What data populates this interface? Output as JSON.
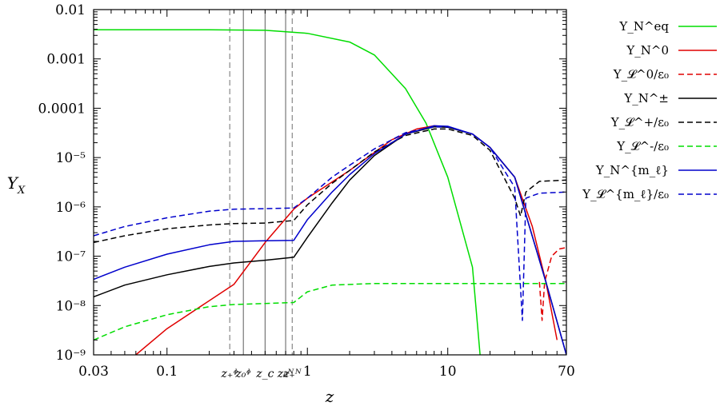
{
  "chart_data": {
    "type": "line",
    "xlabel": "z",
    "ylabel": "Y_X",
    "x_scale": "log",
    "y_scale": "log",
    "xlim": [
      0.03,
      70
    ],
    "ylim": [
      1e-09,
      0.01
    ],
    "grid": false,
    "legend_position": "outside right",
    "x_ticks": [
      {
        "value": 0.03,
        "label": "0.03"
      },
      {
        "value": 0.1,
        "label": "0.1"
      },
      {
        "value": 1,
        "label": "1"
      },
      {
        "value": 10,
        "label": "10"
      },
      {
        "value": 70,
        "label": "70"
      }
    ],
    "x_minor_ticks": [
      0.04,
      0.05,
      0.06,
      0.07,
      0.08,
      0.09,
      0.2,
      0.3,
      0.4,
      0.5,
      0.6,
      0.7,
      0.8,
      0.9,
      2,
      3,
      4,
      5,
      6,
      7,
      8,
      9,
      20,
      30,
      40,
      50,
      60
    ],
    "y_ticks": [
      {
        "value": 1e-09,
        "label": "10⁻⁹"
      },
      {
        "value": 1e-08,
        "label": "10⁻⁸"
      },
      {
        "value": 1e-07,
        "label": "10⁻⁷"
      },
      {
        "value": 1e-06,
        "label": "10⁻⁶"
      },
      {
        "value": 1e-05,
        "label": "10⁻⁵"
      },
      {
        "value": 0.0001,
        "label": "0.0001"
      },
      {
        "value": 0.001,
        "label": "0.001"
      },
      {
        "value": 0.01,
        "label": "0.01"
      }
    ],
    "vertical_markers": [
      {
        "name": "z₊ᶲ",
        "value": 0.28,
        "style": "dashed"
      },
      {
        "name": "z₀ᶲ",
        "value": 0.35,
        "style": "solid"
      },
      {
        "name": "z_c",
        "value": 0.5,
        "style": "solid"
      },
      {
        "name": "z₀ᴺ",
        "value": 0.7,
        "style": "solid"
      },
      {
        "name": "z₊ᴺ",
        "value": 0.78,
        "style": "dashed"
      }
    ],
    "series": [
      {
        "name": "Y_N^eq",
        "color": "#00dd00",
        "dash": "solid",
        "points": [
          [
            0.03,
            0.0039
          ],
          [
            0.2,
            0.0039
          ],
          [
            0.5,
            0.0038
          ],
          [
            1,
            0.0033
          ],
          [
            2,
            0.0022
          ],
          [
            3,
            0.0012
          ],
          [
            5,
            0.00025
          ],
          [
            7,
            5e-05
          ],
          [
            10,
            4e-06
          ],
          [
            15,
            6e-08
          ],
          [
            17,
            1e-09
          ]
        ]
      },
      {
        "name": "Y_N^0",
        "color": "#e00000",
        "dash": "solid",
        "points": [
          [
            0.06,
            1e-09
          ],
          [
            0.1,
            3.4e-09
          ],
          [
            0.3,
            2.7e-08
          ],
          [
            0.5,
            1.9e-07
          ],
          [
            0.8,
            9e-07
          ],
          [
            1,
            1.5e-06
          ],
          [
            2,
            5.5e-06
          ],
          [
            4,
            2.3e-05
          ],
          [
            6,
            3.8e-05
          ],
          [
            8,
            4.4e-05
          ],
          [
            10,
            4.2e-05
          ],
          [
            15,
            3e-05
          ],
          [
            20,
            1.6e-05
          ],
          [
            30,
            4e-06
          ],
          [
            40,
            4e-07
          ],
          [
            50,
            3e-08
          ],
          [
            60,
            2e-09
          ]
        ]
      },
      {
        "name": "Y_𝓛^0/ε₀",
        "color": "#e00000",
        "dash": "dashed",
        "points": [
          [
            45,
            3e-08
          ],
          [
            47,
            5e-09
          ],
          [
            49,
            3e-08
          ],
          [
            55,
            1e-07
          ],
          [
            62,
            1.4e-07
          ],
          [
            70,
            1.5e-07
          ]
        ]
      },
      {
        "name": "Y_N^±",
        "color": "#000000",
        "dash": "solid",
        "points": [
          [
            0.03,
            1.5e-08
          ],
          [
            0.05,
            2.6e-08
          ],
          [
            0.1,
            4.2e-08
          ],
          [
            0.2,
            6.2e-08
          ],
          [
            0.3,
            7.3e-08
          ],
          [
            0.5,
            8.3e-08
          ],
          [
            0.8,
            9.5e-08
          ],
          [
            1,
            2.4e-07
          ],
          [
            1.5,
            1.2e-06
          ],
          [
            2,
            3.5e-06
          ],
          [
            3,
            1.1e-05
          ],
          [
            5,
            3e-05
          ],
          [
            8,
            4.2e-05
          ],
          [
            10,
            4.1e-05
          ],
          [
            15,
            3e-05
          ],
          [
            20,
            1.6e-05
          ],
          [
            30,
            4e-06
          ],
          [
            50,
            3e-08
          ],
          [
            70,
            1e-09
          ]
        ]
      },
      {
        "name": "Y_𝓛^+/ε₀",
        "color": "#000000",
        "dash": "dashed",
        "points": [
          [
            0.03,
            1.9e-07
          ],
          [
            0.05,
            2.6e-07
          ],
          [
            0.1,
            3.6e-07
          ],
          [
            0.2,
            4.3e-07
          ],
          [
            0.3,
            4.6e-07
          ],
          [
            0.5,
            4.7e-07
          ],
          [
            0.8,
            5.3e-07
          ],
          [
            1,
            1.1e-06
          ],
          [
            1.5,
            3e-06
          ],
          [
            2,
            5.5e-06
          ],
          [
            3,
            1.3e-05
          ],
          [
            5,
            2.8e-05
          ],
          [
            8,
            3.8e-05
          ],
          [
            10,
            3.8e-05
          ],
          [
            15,
            2.8e-05
          ],
          [
            20,
            1.4e-05
          ],
          [
            30,
            1.5e-06
          ],
          [
            33,
            6.5e-07
          ],
          [
            36,
            2e-06
          ],
          [
            45,
            3.3e-06
          ],
          [
            70,
            3.5e-06
          ]
        ]
      },
      {
        "name": "Y_𝓛^-/ε₀",
        "color": "#00dd00",
        "dash": "dashed",
        "points": [
          [
            0.03,
            2e-09
          ],
          [
            0.05,
            3.7e-09
          ],
          [
            0.1,
            6.5e-09
          ],
          [
            0.2,
            9.5e-09
          ],
          [
            0.3,
            1.05e-08
          ],
          [
            0.5,
            1.1e-08
          ],
          [
            0.8,
            1.15e-08
          ],
          [
            1,
            1.9e-08
          ],
          [
            1.5,
            2.6e-08
          ],
          [
            3,
            2.8e-08
          ],
          [
            10,
            2.8e-08
          ],
          [
            70,
            2.8e-08
          ]
        ]
      },
      {
        "name": "Y_N^{m_ℓ}",
        "color": "#0000cc",
        "dash": "solid",
        "points": [
          [
            0.03,
            3.4e-08
          ],
          [
            0.05,
            6e-08
          ],
          [
            0.1,
            1.1e-07
          ],
          [
            0.2,
            1.7e-07
          ],
          [
            0.3,
            2e-07
          ],
          [
            0.5,
            2.05e-07
          ],
          [
            0.8,
            2.1e-07
          ],
          [
            1,
            5.5e-07
          ],
          [
            1.5,
            2e-06
          ],
          [
            2,
            4.5e-06
          ],
          [
            3,
            1.2e-05
          ],
          [
            5,
            3e-05
          ],
          [
            8,
            4.4e-05
          ],
          [
            10,
            4.3e-05
          ],
          [
            15,
            3e-05
          ],
          [
            20,
            1.6e-05
          ],
          [
            30,
            4e-06
          ],
          [
            50,
            3e-08
          ],
          [
            70,
            1e-09
          ]
        ]
      },
      {
        "name": "Y_𝓛^{m_ℓ}/ε₀",
        "color": "#0000cc",
        "dash": "dashed",
        "points": [
          [
            0.03,
            2.6e-07
          ],
          [
            0.05,
            4e-07
          ],
          [
            0.1,
            6e-07
          ],
          [
            0.2,
            8.2e-07
          ],
          [
            0.3,
            9e-07
          ],
          [
            0.5,
            9.2e-07
          ],
          [
            0.8,
            9.5e-07
          ],
          [
            1,
            1.5e-06
          ],
          [
            1.5,
            4e-06
          ],
          [
            2,
            7e-06
          ],
          [
            3,
            1.5e-05
          ],
          [
            5,
            3.2e-05
          ],
          [
            8,
            4.2e-05
          ],
          [
            10,
            4.2e-05
          ],
          [
            15,
            3e-05
          ],
          [
            20,
            1.6e-05
          ],
          [
            30,
            2.5e-06
          ],
          [
            34,
            5e-09
          ],
          [
            36,
            1.5e-06
          ],
          [
            45,
            1.9e-06
          ],
          [
            70,
            2e-06
          ]
        ]
      }
    ]
  }
}
